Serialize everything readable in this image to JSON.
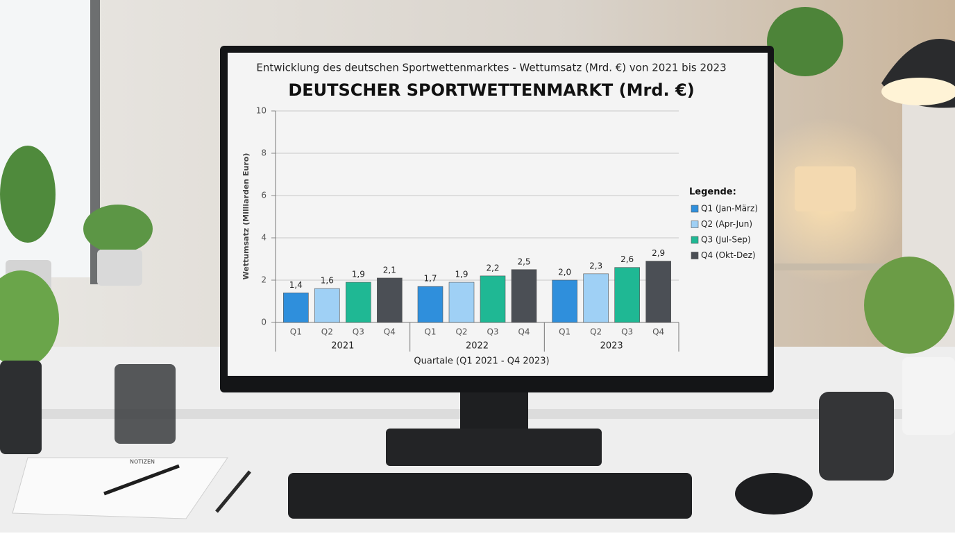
{
  "chart_data": {
    "type": "bar",
    "suptitle": "Entwicklung des deutschen Sportwettenmarktes - Wettumsatz (Mrd. €) von 2021 bis 2023",
    "title": "DEUTSCHER SPORTWETTENMARKT (Mrd. €)",
    "y_label": "Wettumsatz (Milliarden Euro)",
    "x_label": "Quartale (Q1 2021 - Q4 2023)",
    "legend_title": "Legende:",
    "categories": [
      "2021",
      "2022",
      "2023"
    ],
    "quarter_labels": [
      "Q1",
      "Q2",
      "Q3",
      "Q4"
    ],
    "series": [
      {
        "name": "Q1 (Jan-März)",
        "color": "#2f8fdc",
        "values": [
          1.4,
          1.7,
          2.0
        ],
        "value_labels": [
          "1,4",
          "1,7",
          "2,0"
        ]
      },
      {
        "name": "Q2 (Apr-Jun)",
        "color": "#9fd0f5",
        "values": [
          1.6,
          1.9,
          2.3
        ],
        "value_labels": [
          "1,6",
          "1,9",
          "2,3"
        ]
      },
      {
        "name": "Q3 (Jul-Sep)",
        "color": "#1fb894",
        "values": [
          1.9,
          2.2,
          2.6
        ],
        "value_labels": [
          "1,9",
          "2,2",
          "2,6"
        ]
      },
      {
        "name": "Q4 (Okt-Dez)",
        "color": "#4b4f55",
        "values": [
          2.1,
          2.5,
          2.9
        ],
        "value_labels": [
          "2,1",
          "2,5",
          "2,9"
        ]
      }
    ],
    "ylim": [
      0,
      10
    ],
    "yticks": [
      0,
      2,
      4,
      6,
      8,
      10
    ],
    "grid": true,
    "legend": "right"
  },
  "scene": {
    "notebook_label": "NOTIZEN"
  }
}
